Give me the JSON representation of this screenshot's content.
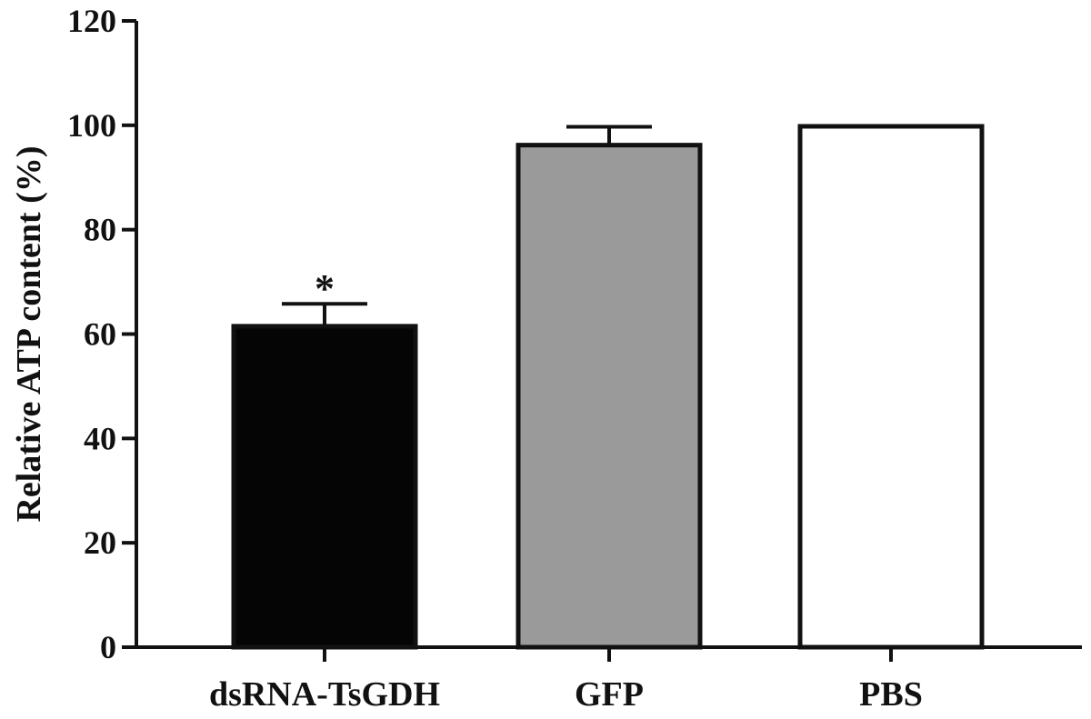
{
  "chart_data": {
    "type": "bar",
    "categories": [
      "dsRNA-TsGDH",
      "GFP",
      "PBS"
    ],
    "values": [
      61.5,
      96.2,
      99.8
    ],
    "errors": [
      4.3,
      3.5,
      0
    ],
    "bar_fills": [
      "#050505",
      "#9a9a9a",
      "#ffffff"
    ],
    "annotations": [
      "*",
      "",
      ""
    ],
    "title": "",
    "xlabel": "",
    "ylabel": "Relative ATP content (%)",
    "ylim": [
      0,
      120
    ],
    "yticks": [
      "0",
      "20",
      "40",
      "60",
      "80",
      "100",
      "120"
    ],
    "grid": false,
    "legend": "none"
  }
}
